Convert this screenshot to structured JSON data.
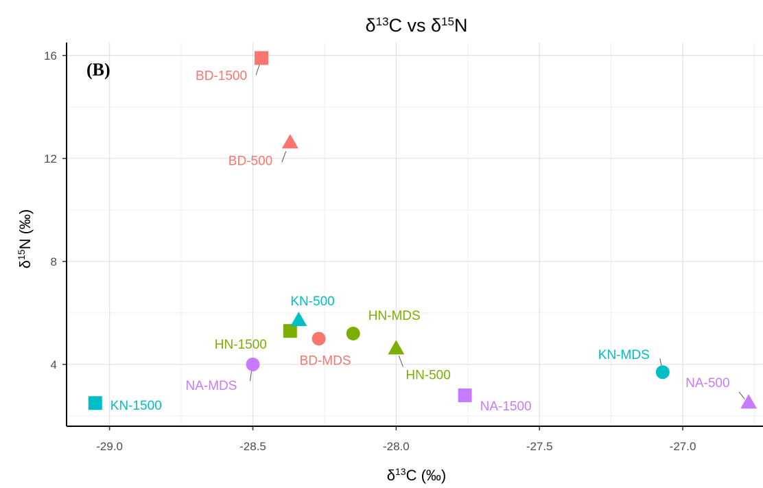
{
  "chart_data": {
    "type": "scatter",
    "title": {
      "base1": "δ",
      "sup1": "13",
      "mid": "C vs δ",
      "sup2": "15",
      "tail": "N"
    },
    "panel_label": "(B)",
    "xlabel": {
      "base": "δ",
      "sup": "13",
      "tail": "C (‰)"
    },
    "ylabel": {
      "base": "δ",
      "sup": "15",
      "tail": "N (‰)"
    },
    "xlim": [
      -29.15,
      -26.72
    ],
    "ylim": [
      1.6,
      16.5
    ],
    "x_ticks": [
      -29.0,
      -28.5,
      -28.0,
      -27.5,
      -27.0
    ],
    "x_tick_labels": [
      "-29.0",
      "-28.5",
      "-28.0",
      "-27.5",
      "-27.0"
    ],
    "y_ticks": [
      4,
      8,
      12,
      16
    ],
    "y_tick_labels": [
      "4",
      "8",
      "12",
      "16"
    ],
    "grid": true,
    "colors": {
      "BD": "#F8766D",
      "HN": "#7CAE00",
      "KN": "#00BFC4",
      "NA": "#C77CFF"
    },
    "shapes": {
      "MDS": "circle",
      "500": "triangle",
      "1500": "square"
    },
    "points": [
      {
        "label": "BD-1500",
        "group": "BD",
        "shape": "square",
        "x": -28.47,
        "y": 15.9
      },
      {
        "label": "BD-500",
        "group": "BD",
        "shape": "triangle",
        "x": -28.37,
        "y": 12.6
      },
      {
        "label": "BD-MDS",
        "group": "BD",
        "shape": "circle",
        "x": -28.27,
        "y": 5.0
      },
      {
        "label": "HN-1500",
        "group": "HN",
        "shape": "square",
        "x": -28.37,
        "y": 5.3
      },
      {
        "label": "HN-MDS",
        "group": "HN",
        "shape": "circle",
        "x": -28.15,
        "y": 5.2
      },
      {
        "label": "HN-500",
        "group": "HN",
        "shape": "triangle",
        "x": -28.0,
        "y": 4.6
      },
      {
        "label": "KN-500",
        "group": "KN",
        "shape": "triangle",
        "x": -28.34,
        "y": 5.7
      },
      {
        "label": "KN-1500",
        "group": "KN",
        "shape": "square",
        "x": -29.05,
        "y": 2.5
      },
      {
        "label": "KN-MDS",
        "group": "KN",
        "shape": "circle",
        "x": -27.07,
        "y": 3.7
      },
      {
        "label": "NA-MDS",
        "group": "NA",
        "shape": "circle",
        "x": -28.5,
        "y": 4.0
      },
      {
        "label": "NA-1500",
        "group": "NA",
        "shape": "square",
        "x": -27.76,
        "y": 2.8
      },
      {
        "label": "NA-500",
        "group": "NA",
        "shape": "triangle",
        "x": -26.77,
        "y": 2.5
      }
    ]
  }
}
